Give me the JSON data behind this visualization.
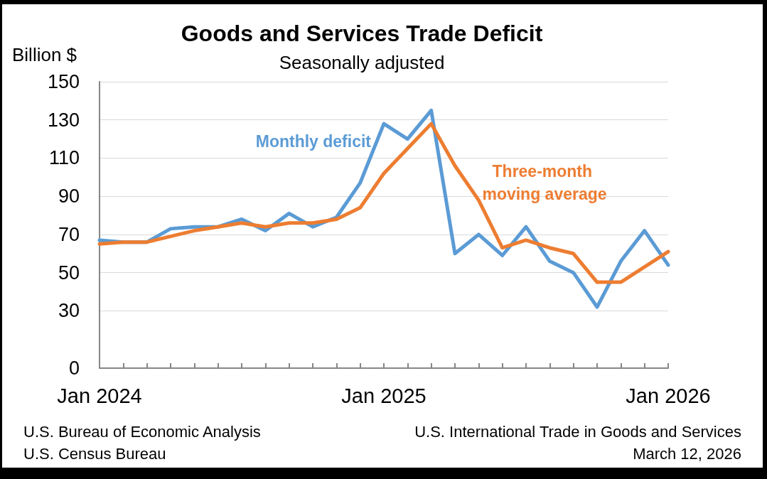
{
  "chart_data": {
    "type": "line",
    "title": "Goods and Services Trade Deficit",
    "subtitle": "Seasonally adjusted",
    "ylabel": "Billion $",
    "categories": [
      "Jan 2024",
      null,
      null,
      null,
      null,
      null,
      null,
      null,
      null,
      null,
      null,
      null,
      "Jan 2025",
      null,
      null,
      null,
      null,
      null,
      null,
      null,
      null,
      null,
      null,
      null,
      "Jan 2026"
    ],
    "series": [
      {
        "name": "Monthly deficit",
        "color": "#5b9bd5",
        "values": [
          67,
          66,
          66,
          73,
          74,
          74,
          78,
          72,
          81,
          74,
          79,
          97,
          128,
          120,
          135,
          60,
          70,
          59,
          74,
          56,
          50,
          32,
          56,
          72,
          54
        ]
      },
      {
        "name": "Three-month moving average",
        "color": "#ed7d31",
        "values": [
          65,
          66,
          66,
          69,
          72,
          74,
          76,
          74,
          76,
          76,
          78,
          84,
          102,
          115,
          128,
          106,
          88,
          63,
          67,
          63,
          60,
          45,
          45,
          53,
          61
        ]
      }
    ],
    "ylim": [
      0,
      150
    ],
    "yticks": [
      0,
      30,
      50,
      70,
      90,
      110,
      130,
      150
    ],
    "grid": "y",
    "marker": "none",
    "line_style": "solid",
    "annotations": [
      "U.S. Bureau of Economic Analysis",
      "U.S. Census Bureau",
      "U.S. International Trade in Goods and Services",
      "March 12, 2026"
    ]
  }
}
